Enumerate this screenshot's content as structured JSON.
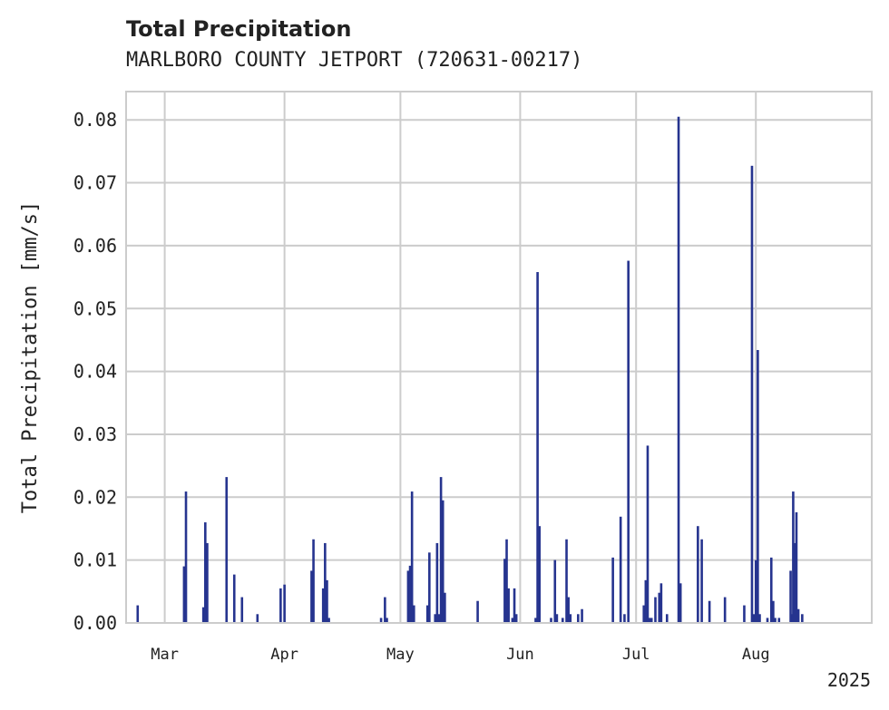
{
  "chart_data": {
    "type": "bar",
    "title": "Total Precipitation",
    "subtitle": "MARLBORO COUNTY JETPORT (720631-00217)",
    "xlabel": "",
    "ylabel": "Total Precipitation [mm/s]",
    "year_label": "2025",
    "xlim": [
      "2025-02-19",
      "2025-08-31"
    ],
    "ylim": [
      0,
      0.0845
    ],
    "yticks": [
      "0.00",
      "0.01",
      "0.02",
      "0.03",
      "0.04",
      "0.05",
      "0.06",
      "0.07",
      "0.08"
    ],
    "xticks": [
      {
        "date": "2025-03-01",
        "label": "Mar"
      },
      {
        "date": "2025-04-01",
        "label": "Apr"
      },
      {
        "date": "2025-05-01",
        "label": "May"
      },
      {
        "date": "2025-06-01",
        "label": "Jun"
      },
      {
        "date": "2025-07-01",
        "label": "Jul"
      },
      {
        "date": "2025-08-01",
        "label": "Aug"
      }
    ],
    "grid": true,
    "bar_color": "#26348f",
    "series": [
      {
        "points": [
          {
            "x": "2025-02-22",
            "y": 0.0028
          },
          {
            "x": "2025-03-06",
            "y": 0.009
          },
          {
            "x": "2025-03-06T12:00",
            "y": 0.0209
          },
          {
            "x": "2025-03-11",
            "y": 0.0025
          },
          {
            "x": "2025-03-11T12:00",
            "y": 0.016
          },
          {
            "x": "2025-03-12",
            "y": 0.0127
          },
          {
            "x": "2025-03-17",
            "y": 0.0232
          },
          {
            "x": "2025-03-19",
            "y": 0.0077
          },
          {
            "x": "2025-03-21",
            "y": 0.0041
          },
          {
            "x": "2025-03-25",
            "y": 0.0014
          },
          {
            "x": "2025-03-31",
            "y": 0.0055
          },
          {
            "x": "2025-04-01",
            "y": 0.0061
          },
          {
            "x": "2025-04-08",
            "y": 0.0083
          },
          {
            "x": "2025-04-08T12:00",
            "y": 0.0133
          },
          {
            "x": "2025-04-11",
            "y": 0.0055
          },
          {
            "x": "2025-04-11T12:00",
            "y": 0.0127
          },
          {
            "x": "2025-04-12",
            "y": 0.0068
          },
          {
            "x": "2025-04-12T12:00",
            "y": 0.0008
          },
          {
            "x": "2025-04-26",
            "y": 0.0008
          },
          {
            "x": "2025-04-27",
            "y": 0.0041
          },
          {
            "x": "2025-04-27T12:00",
            "y": 0.0008
          },
          {
            "x": "2025-05-03",
            "y": 0.0083
          },
          {
            "x": "2025-05-03T12:00",
            "y": 0.0091
          },
          {
            "x": "2025-05-04",
            "y": 0.0209
          },
          {
            "x": "2025-05-04T12:00",
            "y": 0.0028
          },
          {
            "x": "2025-05-08",
            "y": 0.0028
          },
          {
            "x": "2025-05-08T12:00",
            "y": 0.0112
          },
          {
            "x": "2025-05-10",
            "y": 0.0014
          },
          {
            "x": "2025-05-10T12:00",
            "y": 0.0127
          },
          {
            "x": "2025-05-11",
            "y": 0.0014
          },
          {
            "x": "2025-05-11T12:00",
            "y": 0.0232
          },
          {
            "x": "2025-05-12",
            "y": 0.0195
          },
          {
            "x": "2025-05-12T12:00",
            "y": 0.0048
          },
          {
            "x": "2025-05-21",
            "y": 0.0035
          },
          {
            "x": "2025-05-28",
            "y": 0.0102
          },
          {
            "x": "2025-05-28T12:00",
            "y": 0.0133
          },
          {
            "x": "2025-05-29",
            "y": 0.0055
          },
          {
            "x": "2025-05-30",
            "y": 0.0008
          },
          {
            "x": "2025-05-30T12:00",
            "y": 0.0055
          },
          {
            "x": "2025-05-31",
            "y": 0.0014
          },
          {
            "x": "2025-06-05",
            "y": 0.0008
          },
          {
            "x": "2025-06-05T12:00",
            "y": 0.0558
          },
          {
            "x": "2025-06-06",
            "y": 0.0154
          },
          {
            "x": "2025-06-09",
            "y": 0.0008
          },
          {
            "x": "2025-06-10",
            "y": 0.01
          },
          {
            "x": "2025-06-10T12:00",
            "y": 0.0014
          },
          {
            "x": "2025-06-12",
            "y": 0.0008
          },
          {
            "x": "2025-06-13",
            "y": 0.0133
          },
          {
            "x": "2025-06-13T12:00",
            "y": 0.0041
          },
          {
            "x": "2025-06-14",
            "y": 0.0014
          },
          {
            "x": "2025-06-16",
            "y": 0.0014
          },
          {
            "x": "2025-06-17",
            "y": 0.0022
          },
          {
            "x": "2025-06-25",
            "y": 0.0104
          },
          {
            "x": "2025-06-27",
            "y": 0.0169
          },
          {
            "x": "2025-06-28",
            "y": 0.0014
          },
          {
            "x": "2025-06-29",
            "y": 0.0576
          },
          {
            "x": "2025-07-03",
            "y": 0.0028
          },
          {
            "x": "2025-07-03T12:00",
            "y": 0.0068
          },
          {
            "x": "2025-07-04",
            "y": 0.0282
          },
          {
            "x": "2025-07-04T12:00",
            "y": 0.0008
          },
          {
            "x": "2025-07-05",
            "y": 0.0008
          },
          {
            "x": "2025-07-06",
            "y": 0.0041
          },
          {
            "x": "2025-07-07",
            "y": 0.0048
          },
          {
            "x": "2025-07-07T12:00",
            "y": 0.0063
          },
          {
            "x": "2025-07-09",
            "y": 0.0014
          },
          {
            "x": "2025-07-12",
            "y": 0.0805
          },
          {
            "x": "2025-07-12T12:00",
            "y": 0.0063
          },
          {
            "x": "2025-07-17",
            "y": 0.0154
          },
          {
            "x": "2025-07-18",
            "y": 0.0133
          },
          {
            "x": "2025-07-20",
            "y": 0.0035
          },
          {
            "x": "2025-07-24",
            "y": 0.0041
          },
          {
            "x": "2025-07-29",
            "y": 0.0028
          },
          {
            "x": "2025-07-31",
            "y": 0.0727
          },
          {
            "x": "2025-07-31T12:00",
            "y": 0.0014
          },
          {
            "x": "2025-08-01",
            "y": 0.01
          },
          {
            "x": "2025-08-01T12:00",
            "y": 0.0434
          },
          {
            "x": "2025-08-02",
            "y": 0.0014
          },
          {
            "x": "2025-08-04",
            "y": 0.0008
          },
          {
            "x": "2025-08-05",
            "y": 0.0104
          },
          {
            "x": "2025-08-05T12:00",
            "y": 0.0035
          },
          {
            "x": "2025-08-06",
            "y": 0.0008
          },
          {
            "x": "2025-08-07",
            "y": 0.0008
          },
          {
            "x": "2025-08-10",
            "y": 0.0083
          },
          {
            "x": "2025-08-10T08:00",
            "y": 0.0014
          },
          {
            "x": "2025-08-10T16:00",
            "y": 0.0209
          },
          {
            "x": "2025-08-11",
            "y": 0.0127
          },
          {
            "x": "2025-08-11T12:00",
            "y": 0.0176
          },
          {
            "x": "2025-08-12",
            "y": 0.0022
          },
          {
            "x": "2025-08-13",
            "y": 0.0014
          }
        ]
      }
    ]
  }
}
